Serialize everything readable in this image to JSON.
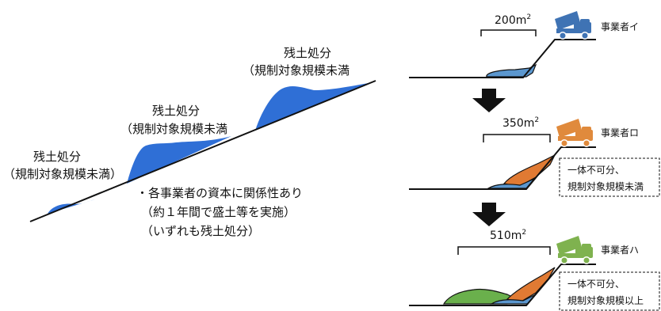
{
  "colors": {
    "soil_blue": "#2f6fd6",
    "soil_blue_right": "#5b97cf",
    "soil_orange": "#e07a33",
    "soil_green": "#6ab04c",
    "truck_blue": "#3f73b4",
    "truck_orange": "#e08a3c",
    "truck_green": "#7fb24f",
    "line": "#111111"
  },
  "left": {
    "labels": [
      {
        "title": "残土処分",
        "sub": "（規制対象規模未満）"
      },
      {
        "title": "残土処分",
        "sub": "（規制対象規模未満"
      },
      {
        "title": "残土処分",
        "sub": "（規制対象規模未満"
      }
    ],
    "note": [
      "・各事業者の資本に関係性あり",
      "（約１年間で盛土等を実施）",
      "（いずれも残土処分）"
    ]
  },
  "right": {
    "steps": [
      {
        "area": "200m",
        "sup": "2",
        "operator": "事業者イ",
        "box": []
      },
      {
        "area": "350m",
        "sup": "2",
        "operator": "事業者ロ",
        "box": [
          "一体不可分、",
          "規制対象規模未満"
        ]
      },
      {
        "area": "510m",
        "sup": "2",
        "operator": "事業者ハ",
        "box": [
          "一体不可分、",
          "規制対象規模以上"
        ]
      }
    ]
  }
}
